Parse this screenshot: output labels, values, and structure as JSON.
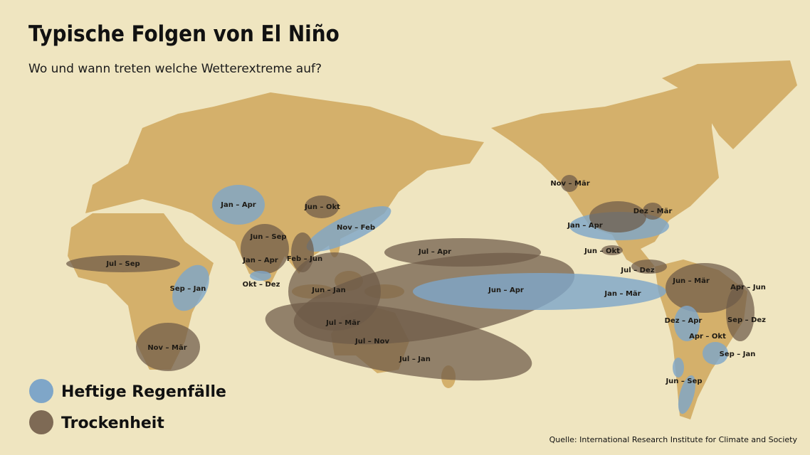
{
  "header": {
    "title": "Typische Folgen von El Niño",
    "subtitle": "Wo und wann treten welche Wetterextreme auf?"
  },
  "legend": [
    {
      "label": "Heftige Regenfälle"
    },
    {
      "label": "Trockenheit"
    }
  ],
  "regions": [
    {
      "label": "Jan – Apr"
    },
    {
      "label": "Jun – Okt"
    },
    {
      "label": "Nov – Feb"
    },
    {
      "label": "Jun – Sep"
    },
    {
      "label": "Jan – Apr"
    },
    {
      "label": "Feb – Jun"
    },
    {
      "label": "Okt – Dez"
    },
    {
      "label": "Jul – Sep"
    },
    {
      "label": "Sep – Jan"
    },
    {
      "label": "Nov – Mär"
    },
    {
      "label": "Jul – Apr"
    },
    {
      "label": "Jun – Jan"
    },
    {
      "label": "Jul – Mär"
    },
    {
      "label": "Jul – Nov"
    },
    {
      "label": "Jul – Jan"
    },
    {
      "label": "Jun – Apr"
    },
    {
      "label": "Jan – Mär"
    },
    {
      "label": "Nov – Mär"
    },
    {
      "label": "Dez – Mär"
    },
    {
      "label": "Jan – Apr"
    },
    {
      "label": "Jun – Okt"
    },
    {
      "label": "Jul – Dez"
    },
    {
      "label": "Jun – Mär"
    },
    {
      "label": "Apr – Jun"
    },
    {
      "label": "Dez – Apr"
    },
    {
      "label": "Sep – Dez"
    },
    {
      "label": "Apr – Okt"
    },
    {
      "label": "Sep – Jan"
    },
    {
      "label": "Jun – Sep"
    }
  ],
  "source": "Quelle: International Research Institute for Climate and Society"
}
